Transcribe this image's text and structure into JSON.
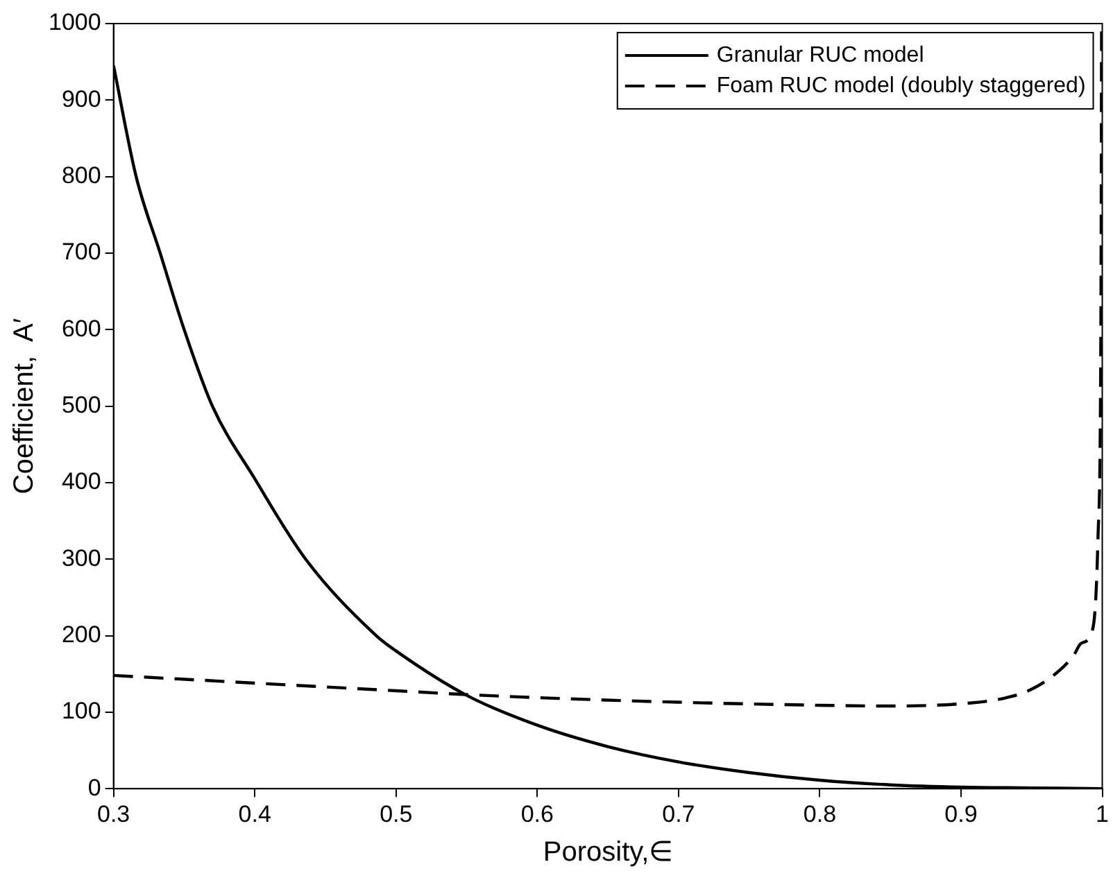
{
  "chart_data": {
    "type": "line",
    "xlabel": "Porosity,∈",
    "ylabel": "Coefficient,  A′",
    "xlim": [
      0.3,
      1
    ],
    "xticks": [
      0.3,
      0.4,
      0.5,
      0.6,
      0.7,
      0.8,
      0.9,
      1
    ],
    "ylim": [
      0,
      1000
    ],
    "yticks": [
      0,
      100,
      200,
      300,
      400,
      500,
      600,
      700,
      800,
      900,
      1000
    ],
    "grid": false,
    "legend": "top right",
    "marker": "none",
    "series": [
      {
        "name": "Granular RUC model",
        "color": "#000000",
        "line_style": "solid",
        "x": [
          0.3,
          0.316,
          0.333,
          0.35,
          0.37,
          0.4,
          0.436,
          0.486,
          0.5,
          0.55,
          0.6,
          0.65,
          0.7,
          0.75,
          0.8,
          0.85,
          0.9,
          0.95,
          1
        ],
        "values": [
          945,
          800,
          700,
          600,
          500,
          405,
          300,
          200,
          180,
          122,
          83,
          55,
          35,
          21,
          11,
          5,
          2,
          1,
          0
        ]
      },
      {
        "name": "Foam RUC model (doubly staggered)",
        "color": "#000000",
        "line_style": "dashed",
        "x": [
          0.3,
          0.4,
          0.5,
          0.55,
          0.6,
          0.7,
          0.8,
          0.85,
          0.9,
          0.93,
          0.95,
          0.97,
          0.98,
          0.985,
          0.993,
          0.997,
          0.999,
          0.9995
        ],
        "values": [
          148,
          138,
          128,
          123,
          119,
          113,
          109,
          108,
          111,
          118,
          130,
          155,
          175,
          190,
          207,
          330,
          600,
          1000
        ]
      }
    ]
  }
}
